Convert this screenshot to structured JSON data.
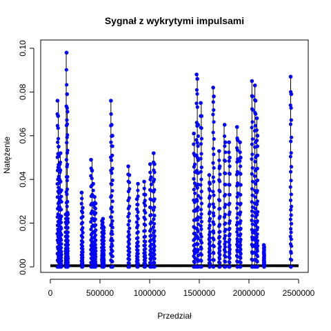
{
  "chart_data": {
    "type": "scatter",
    "title": "Sygnał z wykrytymi impulsami",
    "xlabel": "Przedział",
    "ylabel": "Natężenie",
    "xlim": [
      0,
      2500000
    ],
    "ylim": [
      0,
      0.1
    ],
    "x_ticks": [
      0,
      500000,
      1000000,
      1500000,
      2000000,
      2500000
    ],
    "x_tick_labels": [
      "0",
      "500000",
      "1000000",
      "1500000",
      "2000000",
      "2500000"
    ],
    "y_ticks": [
      0.0,
      0.02,
      0.04,
      0.06,
      0.08,
      0.1
    ],
    "y_tick_labels": [
      "0.00",
      "0.02",
      "0.04",
      "0.06",
      "0.08",
      "0.10"
    ],
    "grid": false,
    "series": [
      {
        "style": "line",
        "color": "#000000",
        "baseline": 0.0005,
        "points": [
          [
            20000,
            0.0
          ],
          [
            80000,
            0.076
          ],
          [
            100000,
            0.052
          ],
          [
            160000,
            0.098
          ],
          [
            170000,
            0.071
          ],
          [
            320000,
            0.034
          ],
          [
            420000,
            0.049
          ],
          [
            450000,
            0.032
          ],
          [
            530000,
            0.022
          ],
          [
            610000,
            0.076
          ],
          [
            790000,
            0.046
          ],
          [
            880000,
            0.038
          ],
          [
            950000,
            0.039
          ],
          [
            1010000,
            0.047
          ],
          [
            1040000,
            0.052
          ],
          [
            1450000,
            0.06
          ],
          [
            1480000,
            0.088
          ],
          [
            1520000,
            0.075
          ],
          [
            1600000,
            0.042
          ],
          [
            1640000,
            0.082
          ],
          [
            1700000,
            0.053
          ],
          [
            1750000,
            0.065
          ],
          [
            1800000,
            0.057
          ],
          [
            1880000,
            0.064
          ],
          [
            1910000,
            0.057
          ],
          [
            2030000,
            0.085
          ],
          [
            2060000,
            0.083
          ],
          [
            2080000,
            0.068
          ],
          [
            2150000,
            0.01
          ],
          [
            2420000,
            0.087
          ]
        ]
      },
      {
        "style": "points",
        "color": "#0000ff",
        "spikes": [
          [
            72000,
            0.076
          ],
          [
            78000,
            0.069
          ],
          [
            83000,
            0.055
          ],
          [
            88000,
            0.045
          ],
          [
            95000,
            0.047
          ],
          [
            102000,
            0.052
          ],
          [
            110000,
            0.035
          ],
          [
            155000,
            0.024
          ],
          [
            163000,
            0.098
          ],
          [
            168000,
            0.079
          ],
          [
            172000,
            0.071
          ],
          [
            176000,
            0.024
          ],
          [
            315000,
            0.034
          ],
          [
            325000,
            0.027
          ],
          [
            410000,
            0.049
          ],
          [
            420000,
            0.044
          ],
          [
            432000,
            0.038
          ],
          [
            445000,
            0.032
          ],
          [
            455000,
            0.029
          ],
          [
            520000,
            0.021
          ],
          [
            530000,
            0.022
          ],
          [
            538000,
            0.018
          ],
          [
            610000,
            0.076
          ],
          [
            617000,
            0.065
          ],
          [
            625000,
            0.06
          ],
          [
            785000,
            0.046
          ],
          [
            795000,
            0.042
          ],
          [
            872000,
            0.031
          ],
          [
            882000,
            0.038
          ],
          [
            945000,
            0.039
          ],
          [
            955000,
            0.033
          ],
          [
            1005000,
            0.047
          ],
          [
            1015000,
            0.041
          ],
          [
            1040000,
            0.052
          ],
          [
            1048000,
            0.047
          ],
          [
            1445000,
            0.061
          ],
          [
            1455000,
            0.051
          ],
          [
            1473000,
            0.088
          ],
          [
            1480000,
            0.086
          ],
          [
            1488000,
            0.065
          ],
          [
            1515000,
            0.075
          ],
          [
            1522000,
            0.069
          ],
          [
            1600000,
            0.042
          ],
          [
            1606000,
            0.038
          ],
          [
            1640000,
            0.082
          ],
          [
            1646000,
            0.078
          ],
          [
            1700000,
            0.053
          ],
          [
            1706000,
            0.046
          ],
          [
            1755000,
            0.065
          ],
          [
            1762000,
            0.057
          ],
          [
            1800000,
            0.057
          ],
          [
            1806000,
            0.05
          ],
          [
            1880000,
            0.064
          ],
          [
            1886000,
            0.058
          ],
          [
            1910000,
            0.057
          ],
          [
            1916000,
            0.05
          ],
          [
            2030000,
            0.085
          ],
          [
            2036000,
            0.078
          ],
          [
            2060000,
            0.083
          ],
          [
            2066000,
            0.076
          ],
          [
            2080000,
            0.068
          ],
          [
            2086000,
            0.06
          ],
          [
            2150000,
            0.01
          ],
          [
            2154000,
            0.009
          ],
          [
            2420000,
            0.087
          ],
          [
            2426000,
            0.079
          ]
        ]
      }
    ]
  }
}
